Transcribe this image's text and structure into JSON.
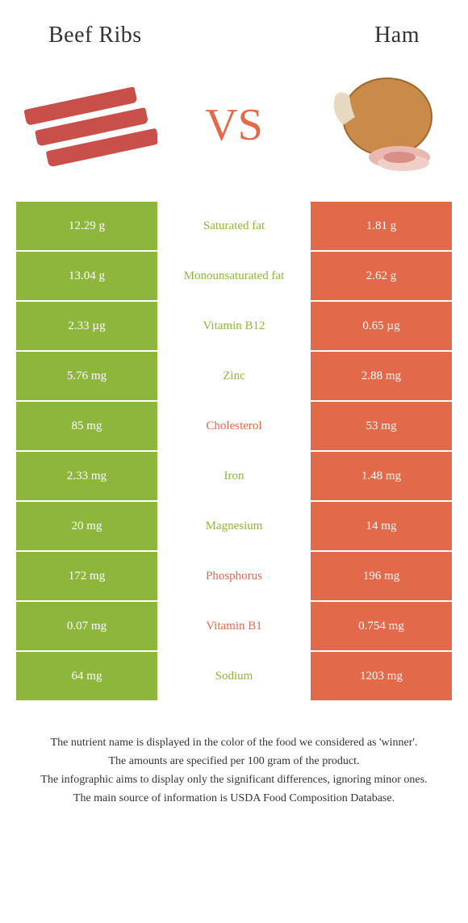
{
  "colors": {
    "left": "#8eb63c",
    "right": "#e26a4b",
    "bg": "#ffffff",
    "text": "#333333"
  },
  "header": {
    "left_title": "Beef Ribs",
    "right_title": "Ham",
    "vs": "VS"
  },
  "nutrients": [
    {
      "label": "Saturated fat",
      "left": "12.29 g",
      "right": "1.81 g",
      "winner": "left"
    },
    {
      "label": "Monounsaturated fat",
      "left": "13.04 g",
      "right": "2.62 g",
      "winner": "left"
    },
    {
      "label": "Vitamin B12",
      "left": "2.33 µg",
      "right": "0.65 µg",
      "winner": "left"
    },
    {
      "label": "Zinc",
      "left": "5.76 mg",
      "right": "2.88 mg",
      "winner": "left"
    },
    {
      "label": "Cholesterol",
      "left": "85 mg",
      "right": "53 mg",
      "winner": "right"
    },
    {
      "label": "Iron",
      "left": "2.33 mg",
      "right": "1.48 mg",
      "winner": "left"
    },
    {
      "label": "Magnesium",
      "left": "20 mg",
      "right": "14 mg",
      "winner": "left"
    },
    {
      "label": "Phosphorus",
      "left": "172 mg",
      "right": "196 mg",
      "winner": "right"
    },
    {
      "label": "Vitamin B1",
      "left": "0.07 mg",
      "right": "0.754 mg",
      "winner": "right"
    },
    {
      "label": "Sodium",
      "left": "64 mg",
      "right": "1203 mg",
      "winner": "left"
    }
  ],
  "footer": {
    "line1": "The nutrient name is displayed in the color of the food we considered as 'winner'.",
    "line2": "The amounts are specified per 100 gram of the product.",
    "line3": "The infographic aims to display only the significant differences, ignoring minor ones.",
    "line4": "The main source of information is USDA Food Composition Database."
  }
}
